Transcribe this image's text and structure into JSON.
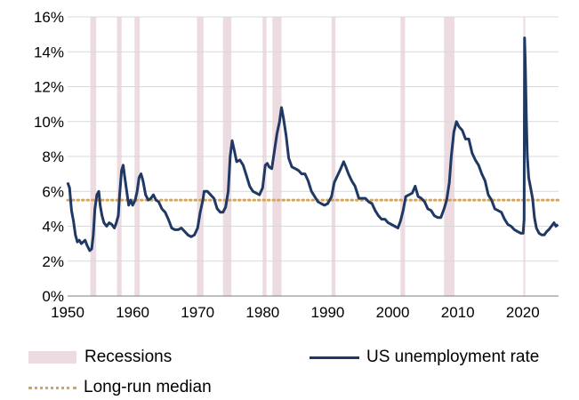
{
  "chart_data": {
    "type": "line",
    "title": "",
    "xlabel": "",
    "ylabel": "",
    "xlim": [
      1950,
      2025.5
    ],
    "ylim": [
      0,
      16
    ],
    "x_ticks": [
      "1950",
      "1960",
      "1970",
      "1980",
      "1990",
      "2000",
      "2010",
      "2020"
    ],
    "y_ticks": [
      "0%",
      "2%",
      "4%",
      "6%",
      "8%",
      "10%",
      "12%",
      "14%",
      "16%"
    ],
    "grid": "horizontal",
    "legend_position": "bottom",
    "recessions": [
      [
        1953.5,
        1954.4
      ],
      [
        1957.6,
        1958.3
      ],
      [
        1960.3,
        1961.1
      ],
      [
        1969.9,
        1970.9
      ],
      [
        1973.9,
        1975.2
      ],
      [
        1980.0,
        1980.6
      ],
      [
        1981.5,
        1982.9
      ],
      [
        1990.6,
        1991.2
      ],
      [
        2001.2,
        2001.9
      ],
      [
        2007.9,
        2009.5
      ],
      [
        2020.1,
        2020.3
      ]
    ],
    "median": 5.5,
    "series": [
      {
        "name": "US unemployment rate",
        "color": "#1f3864",
        "points": [
          [
            1950.0,
            6.5
          ],
          [
            1950.3,
            6.2
          ],
          [
            1950.6,
            4.9
          ],
          [
            1950.9,
            4.3
          ],
          [
            1951.2,
            3.5
          ],
          [
            1951.5,
            3.1
          ],
          [
            1951.8,
            3.2
          ],
          [
            1952.1,
            3.0
          ],
          [
            1952.4,
            3.1
          ],
          [
            1952.7,
            3.2
          ],
          [
            1953.0,
            2.9
          ],
          [
            1953.4,
            2.6
          ],
          [
            1953.7,
            2.7
          ],
          [
            1953.95,
            3.5
          ],
          [
            1954.2,
            5.0
          ],
          [
            1954.5,
            5.8
          ],
          [
            1954.8,
            6.0
          ],
          [
            1955.0,
            5.2
          ],
          [
            1955.3,
            4.6
          ],
          [
            1955.6,
            4.2
          ],
          [
            1956.0,
            4.0
          ],
          [
            1956.4,
            4.2
          ],
          [
            1956.8,
            4.1
          ],
          [
            1957.2,
            3.9
          ],
          [
            1957.5,
            4.2
          ],
          [
            1957.8,
            4.6
          ],
          [
            1958.0,
            5.8
          ],
          [
            1958.3,
            7.2
          ],
          [
            1958.55,
            7.5
          ],
          [
            1958.8,
            6.8
          ],
          [
            1959.1,
            6.0
          ],
          [
            1959.4,
            5.2
          ],
          [
            1959.7,
            5.5
          ],
          [
            1960.0,
            5.2
          ],
          [
            1960.4,
            5.5
          ],
          [
            1960.7,
            6.0
          ],
          [
            1961.0,
            6.8
          ],
          [
            1961.3,
            7.0
          ],
          [
            1961.6,
            6.6
          ],
          [
            1962.0,
            5.8
          ],
          [
            1962.4,
            5.5
          ],
          [
            1962.8,
            5.6
          ],
          [
            1963.2,
            5.8
          ],
          [
            1963.6,
            5.5
          ],
          [
            1964.0,
            5.4
          ],
          [
            1964.5,
            5.0
          ],
          [
            1965.0,
            4.8
          ],
          [
            1965.5,
            4.4
          ],
          [
            1966.0,
            3.9
          ],
          [
            1966.5,
            3.8
          ],
          [
            1967.0,
            3.8
          ],
          [
            1967.5,
            3.9
          ],
          [
            1968.0,
            3.7
          ],
          [
            1968.5,
            3.5
          ],
          [
            1969.0,
            3.4
          ],
          [
            1969.5,
            3.5
          ],
          [
            1970.0,
            3.9
          ],
          [
            1970.4,
            4.8
          ],
          [
            1970.8,
            5.5
          ],
          [
            1971.0,
            6.0
          ],
          [
            1971.5,
            6.0
          ],
          [
            1972.0,
            5.8
          ],
          [
            1972.5,
            5.6
          ],
          [
            1973.0,
            5.0
          ],
          [
            1973.5,
            4.8
          ],
          [
            1973.9,
            4.8
          ],
          [
            1974.3,
            5.1
          ],
          [
            1974.7,
            6.0
          ],
          [
            1975.0,
            8.0
          ],
          [
            1975.3,
            8.9
          ],
          [
            1975.6,
            8.4
          ],
          [
            1976.0,
            7.7
          ],
          [
            1976.5,
            7.8
          ],
          [
            1977.0,
            7.5
          ],
          [
            1977.5,
            6.9
          ],
          [
            1978.0,
            6.3
          ],
          [
            1978.5,
            6.0
          ],
          [
            1979.0,
            5.9
          ],
          [
            1979.5,
            5.8
          ],
          [
            1980.0,
            6.2
          ],
          [
            1980.4,
            7.5
          ],
          [
            1980.7,
            7.6
          ],
          [
            1981.0,
            7.4
          ],
          [
            1981.4,
            7.3
          ],
          [
            1981.8,
            8.3
          ],
          [
            1982.2,
            9.3
          ],
          [
            1982.6,
            10.0
          ],
          [
            1982.9,
            10.8
          ],
          [
            1983.2,
            10.2
          ],
          [
            1983.6,
            9.2
          ],
          [
            1984.0,
            7.9
          ],
          [
            1984.5,
            7.4
          ],
          [
            1985.0,
            7.3
          ],
          [
            1985.5,
            7.2
          ],
          [
            1986.0,
            7.0
          ],
          [
            1986.5,
            7.0
          ],
          [
            1987.0,
            6.6
          ],
          [
            1987.5,
            6.0
          ],
          [
            1988.0,
            5.7
          ],
          [
            1988.5,
            5.4
          ],
          [
            1989.0,
            5.3
          ],
          [
            1989.5,
            5.2
          ],
          [
            1990.0,
            5.3
          ],
          [
            1990.6,
            5.7
          ],
          [
            1991.0,
            6.5
          ],
          [
            1991.5,
            6.9
          ],
          [
            1992.0,
            7.3
          ],
          [
            1992.45,
            7.7
          ],
          [
            1992.8,
            7.4
          ],
          [
            1993.2,
            7.0
          ],
          [
            1993.7,
            6.6
          ],
          [
            1994.2,
            6.3
          ],
          [
            1994.8,
            5.6
          ],
          [
            1995.3,
            5.6
          ],
          [
            1995.8,
            5.6
          ],
          [
            1996.3,
            5.4
          ],
          [
            1996.8,
            5.3
          ],
          [
            1997.3,
            4.9
          ],
          [
            1997.8,
            4.6
          ],
          [
            1998.3,
            4.4
          ],
          [
            1998.8,
            4.4
          ],
          [
            1999.3,
            4.2
          ],
          [
            1999.8,
            4.1
          ],
          [
            2000.3,
            4.0
          ],
          [
            2000.8,
            3.9
          ],
          [
            2001.2,
            4.3
          ],
          [
            2001.6,
            4.9
          ],
          [
            2002.0,
            5.7
          ],
          [
            2002.5,
            5.8
          ],
          [
            2003.0,
            5.9
          ],
          [
            2003.45,
            6.3
          ],
          [
            2003.9,
            5.7
          ],
          [
            2004.4,
            5.6
          ],
          [
            2004.9,
            5.4
          ],
          [
            2005.4,
            5.0
          ],
          [
            2005.9,
            4.9
          ],
          [
            2006.4,
            4.6
          ],
          [
            2006.9,
            4.5
          ],
          [
            2007.4,
            4.5
          ],
          [
            2007.9,
            5.0
          ],
          [
            2008.3,
            5.5
          ],
          [
            2008.7,
            6.5
          ],
          [
            2009.0,
            8.0
          ],
          [
            2009.4,
            9.4
          ],
          [
            2009.8,
            10.0
          ],
          [
            2010.2,
            9.7
          ],
          [
            2010.7,
            9.5
          ],
          [
            2011.2,
            9.0
          ],
          [
            2011.7,
            9.0
          ],
          [
            2012.2,
            8.2
          ],
          [
            2012.7,
            7.8
          ],
          [
            2013.2,
            7.5
          ],
          [
            2013.7,
            7.0
          ],
          [
            2014.2,
            6.6
          ],
          [
            2014.7,
            5.8
          ],
          [
            2015.2,
            5.5
          ],
          [
            2015.7,
            5.0
          ],
          [
            2016.2,
            4.9
          ],
          [
            2016.7,
            4.8
          ],
          [
            2017.2,
            4.4
          ],
          [
            2017.7,
            4.1
          ],
          [
            2018.2,
            4.0
          ],
          [
            2018.7,
            3.8
          ],
          [
            2019.2,
            3.7
          ],
          [
            2019.7,
            3.6
          ],
          [
            2020.05,
            3.6
          ],
          [
            2020.2,
            4.4
          ],
          [
            2020.28,
            14.8
          ],
          [
            2020.4,
            13.2
          ],
          [
            2020.55,
            10.2
          ],
          [
            2020.7,
            8.0
          ],
          [
            2020.9,
            6.8
          ],
          [
            2021.2,
            6.2
          ],
          [
            2021.5,
            5.6
          ],
          [
            2021.8,
            4.5
          ],
          [
            2022.1,
            3.9
          ],
          [
            2022.5,
            3.6
          ],
          [
            2022.9,
            3.5
          ],
          [
            2023.3,
            3.5
          ],
          [
            2023.7,
            3.7
          ],
          [
            2024.0,
            3.8
          ],
          [
            2024.4,
            4.0
          ],
          [
            2024.8,
            4.2
          ],
          [
            2025.1,
            4.0
          ],
          [
            2025.4,
            4.1
          ]
        ]
      }
    ]
  },
  "legend": {
    "recessions_label": "Recessions",
    "line_label": "US unemployment rate",
    "median_label": "Long-run median"
  }
}
